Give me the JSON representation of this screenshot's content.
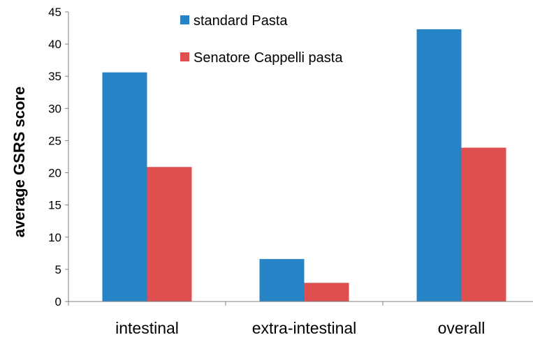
{
  "chart_data": {
    "type": "bar",
    "title": "",
    "xlabel": "",
    "ylabel": "average GSRS score",
    "categories": [
      "intestinal",
      "extra-intestinal",
      "overall"
    ],
    "series": [
      {
        "name": "standard Pasta",
        "color": "#2683c6",
        "values": [
          35.6,
          6.6,
          42.3
        ]
      },
      {
        "name": "Senatore Cappelli pasta",
        "color": "#df4f4f",
        "values": [
          20.9,
          2.9,
          23.9
        ]
      }
    ],
    "ylim": [
      0,
      45
    ],
    "yticks": [
      0,
      5,
      10,
      15,
      20,
      25,
      30,
      35,
      40,
      45
    ],
    "grid": false,
    "legend_position": "top-center"
  }
}
